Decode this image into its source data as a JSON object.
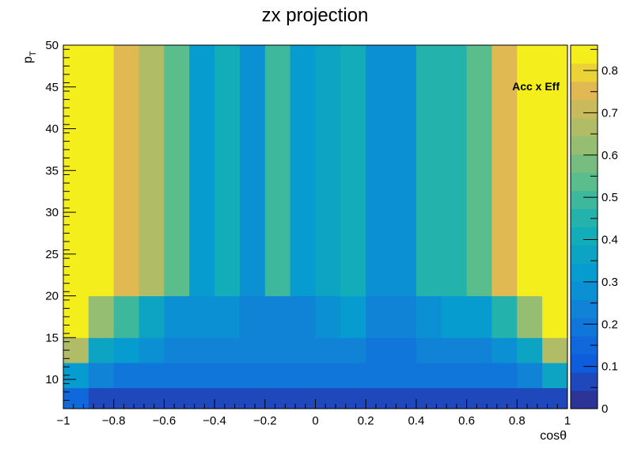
{
  "chart_data": {
    "type": "heatmap",
    "title": "zx projection",
    "xlabel": "cosθ",
    "ylabel_main": "p",
    "ylabel_sub": "T",
    "zlabel": "Acc x Eff",
    "xlim": [
      -1,
      1
    ],
    "ylim": [
      6.5,
      50
    ],
    "zlim": [
      0,
      0.86
    ],
    "x_ticks": [
      -1,
      -0.8,
      -0.6,
      -0.4,
      -0.2,
      0,
      0.2,
      0.4,
      0.6,
      0.8,
      1
    ],
    "x_tick_labels": [
      "−1",
      "−0.8",
      "−0.6",
      "−0.4",
      "−0.2",
      "0",
      "0.2",
      "0.4",
      "0.6",
      "0.8",
      "1"
    ],
    "y_ticks": [
      10,
      15,
      20,
      25,
      30,
      35,
      40,
      45,
      50
    ],
    "y_tick_labels": [
      "10",
      "15",
      "20",
      "25",
      "30",
      "35",
      "40",
      "45",
      "50"
    ],
    "z_ticks": [
      0,
      0.1,
      0.2,
      0.3,
      0.4,
      0.5,
      0.6,
      0.7,
      0.8
    ],
    "z_tick_labels": [
      "0",
      "0.1",
      "0.2",
      "0.3",
      "0.4",
      "0.5",
      "0.6",
      "0.7",
      "0.8"
    ],
    "x_edges": [
      -1,
      -0.9,
      -0.8,
      -0.7,
      -0.6,
      -0.5,
      -0.4,
      -0.3,
      -0.2,
      -0.1,
      0,
      0.1,
      0.2,
      0.3,
      0.4,
      0.5,
      0.6,
      0.7,
      0.8,
      0.9,
      1
    ],
    "y_edges": [
      6.5,
      9,
      12,
      15,
      20,
      50
    ],
    "z": [
      [
        0.16,
        0.08,
        0.08,
        0.08,
        0.08,
        0.08,
        0.08,
        0.08,
        0.08,
        0.08,
        0.08,
        0.08,
        0.08,
        0.08,
        0.08,
        0.08,
        0.08,
        0.08,
        0.08,
        0.08
      ],
      [
        0.33,
        0.22,
        0.18,
        0.18,
        0.18,
        0.18,
        0.18,
        0.18,
        0.18,
        0.18,
        0.18,
        0.18,
        0.18,
        0.18,
        0.18,
        0.18,
        0.18,
        0.18,
        0.22,
        0.35
      ],
      [
        0.66,
        0.38,
        0.31,
        0.28,
        0.24,
        0.24,
        0.22,
        0.22,
        0.22,
        0.24,
        0.24,
        0.22,
        0.2,
        0.2,
        0.24,
        0.24,
        0.24,
        0.3,
        0.38,
        0.66
      ],
      [
        0.83,
        0.64,
        0.48,
        0.38,
        0.3,
        0.3,
        0.28,
        0.22,
        0.22,
        0.24,
        0.28,
        0.32,
        0.24,
        0.24,
        0.28,
        0.32,
        0.32,
        0.44,
        0.62,
        0.83
      ],
      [
        0.86,
        0.82,
        0.74,
        0.67,
        0.52,
        0.32,
        0.42,
        0.3,
        0.48,
        0.32,
        0.36,
        0.4,
        0.28,
        0.3,
        0.44,
        0.44,
        0.52,
        0.74,
        0.82,
        0.86
      ]
    ]
  }
}
